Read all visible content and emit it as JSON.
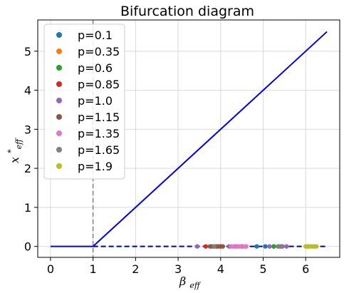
{
  "chart_data": {
    "type": "line",
    "title": "Bifurcation diagram",
    "xlabel": "β",
    "xlabel_sub": "eff",
    "ylabel": "x",
    "ylabel_sup": "*",
    "ylabel_sub": "eff",
    "xlim": [
      -0.3,
      6.8
    ],
    "ylim": [
      -0.28,
      5.8
    ],
    "xticks": [
      0,
      1,
      2,
      3,
      4,
      5,
      6
    ],
    "yticks": [
      0,
      1,
      2,
      3,
      4,
      5
    ],
    "grid": true,
    "legend_position": "top-left",
    "vline": {
      "x": 1,
      "style": "dashed",
      "color": "#808080"
    },
    "curves": [
      {
        "style": "solid",
        "color": "#0000ee",
        "x": [
          0,
          1
        ],
        "y": [
          0,
          0
        ]
      },
      {
        "style": "solid",
        "color": "#0000ee",
        "x": [
          1,
          6.5
        ],
        "y": [
          0,
          5.5
        ]
      },
      {
        "style": "dashed",
        "color": "#0000aa",
        "x": [
          1,
          6.5
        ],
        "y": [
          0,
          0
        ]
      }
    ],
    "series": [
      {
        "name": "p=0.1",
        "color": "#1f77b4",
        "x": [
          4.85,
          5.05,
          5.25,
          5.45
        ]
      },
      {
        "name": "p=0.35",
        "color": "#ff7f0e",
        "x": [
          4.6,
          5.4
        ]
      },
      {
        "name": "p=0.6",
        "color": "#2ca02c",
        "x": [
          3.9,
          5.25
        ]
      },
      {
        "name": "p=0.85",
        "color": "#d62728",
        "x": [
          3.65,
          3.85,
          4.0
        ]
      },
      {
        "name": "p=1.0",
        "color": "#9467bd",
        "x": [
          3.45,
          4.2,
          4.35,
          4.5,
          5.15,
          5.4,
          5.55,
          6.05
        ]
      },
      {
        "name": "p=1.15",
        "color": "#8c564b",
        "x": [
          3.75,
          3.8,
          3.9,
          3.95,
          4.05
        ]
      },
      {
        "name": "p=1.35",
        "color": "#e377c2",
        "x": [
          4.25,
          4.3,
          4.4,
          4.45,
          4.55,
          4.6
        ]
      },
      {
        "name": "p=1.65",
        "color": "#7f7f7f",
        "x": [
          3.85,
          5.35,
          5.45
        ]
      },
      {
        "name": "p=1.9",
        "color": "#bcbd22",
        "x": [
          6.0,
          6.05,
          6.1,
          6.15,
          6.2,
          6.25
        ]
      }
    ]
  }
}
